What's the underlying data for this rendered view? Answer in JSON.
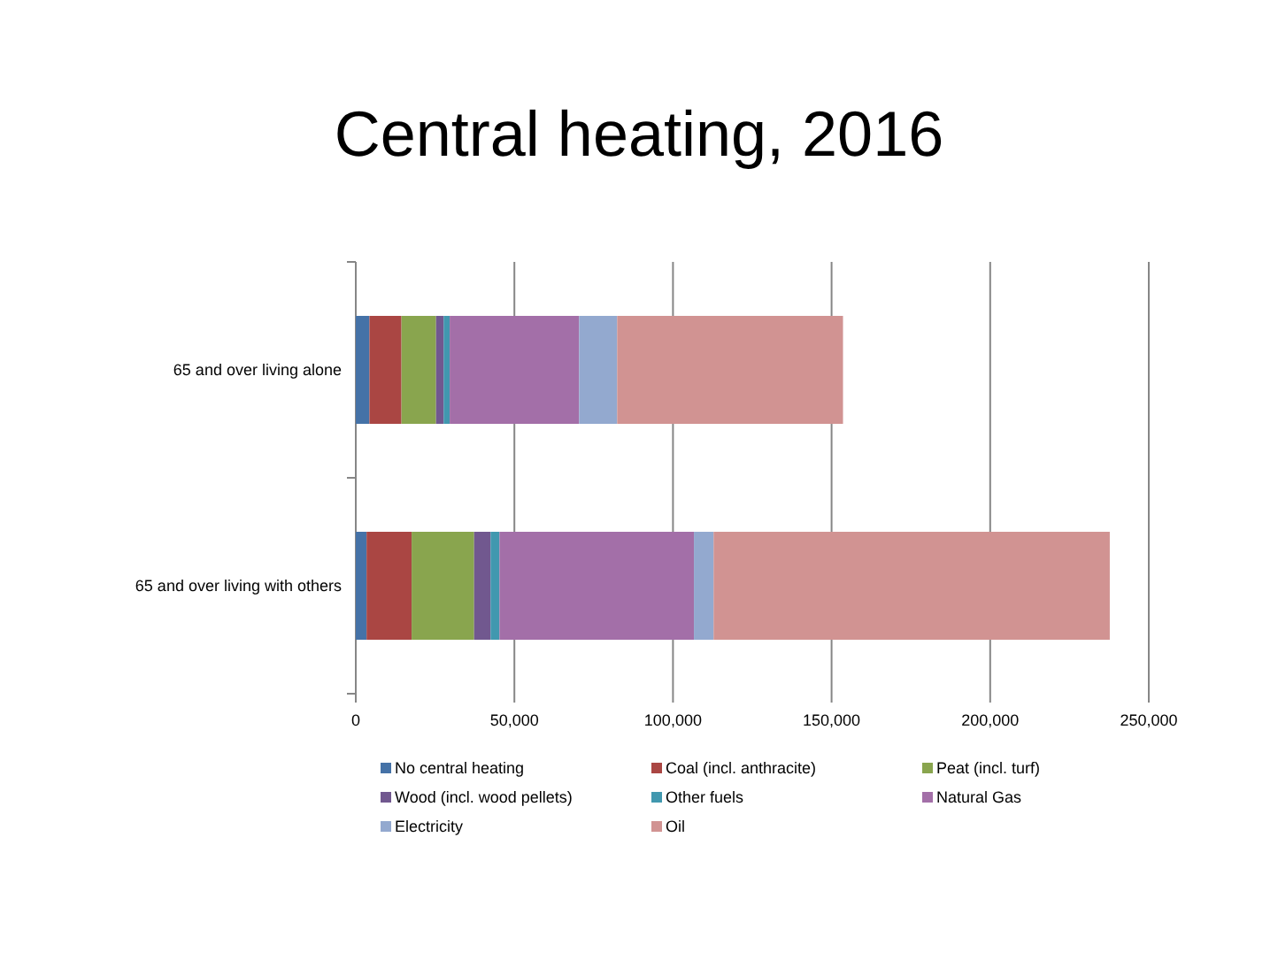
{
  "chart_data": {
    "type": "bar",
    "orientation": "horizontal",
    "stacked": true,
    "title": "Central heating, 2016",
    "categories": [
      "65 and over living alone",
      "65 and over living with others"
    ],
    "series": [
      {
        "name": "No central heating",
        "color": "#4572a7",
        "values": [
          4300,
          3400
        ]
      },
      {
        "name": "Coal (incl. anthracite)",
        "color": "#aa4643",
        "values": [
          10100,
          14200
        ]
      },
      {
        "name": "Peat (incl. turf)",
        "color": "#89a54e",
        "values": [
          10900,
          19700
        ]
      },
      {
        "name": "Wood (incl. wood pellets)",
        "color": "#71588f",
        "values": [
          2400,
          5200
        ]
      },
      {
        "name": "Other fuels",
        "color": "#4198af",
        "values": [
          1900,
          2800
        ]
      },
      {
        "name": "Natural Gas",
        "color": "#a36fa8",
        "values": [
          40800,
          61300
        ]
      },
      {
        "name": "Electricity",
        "color": "#93a9cf",
        "values": [
          12000,
          6200
        ]
      },
      {
        "name": "Oil",
        "color": "#d19392",
        "values": [
          71200,
          124900
        ]
      }
    ],
    "xlim": [
      0,
      250000
    ],
    "xticks": [
      {
        "value": 0,
        "label": "0"
      },
      {
        "value": 50000,
        "label": "50,000"
      },
      {
        "value": 100000,
        "label": "100,000"
      },
      {
        "value": 150000,
        "label": "150,000"
      },
      {
        "value": 200000,
        "label": "200,000"
      },
      {
        "value": 250000,
        "label": "250,000"
      }
    ],
    "grid": "x",
    "legend": "bottom"
  }
}
